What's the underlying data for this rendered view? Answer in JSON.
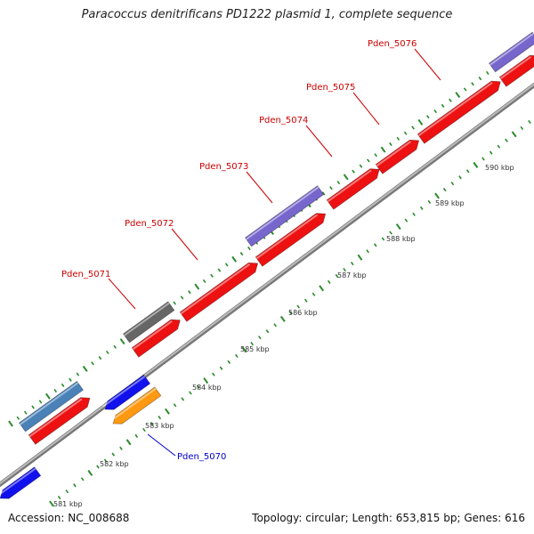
{
  "title": "Paracoccus denitrificans PD1222 plasmid 1, complete sequence",
  "accession": "Accession: NC_008688",
  "summary": "Topology: circular; Length: 653,815 bp; Genes: 616",
  "scale_labels": [
    "581 kbp",
    "582 kbp",
    "583 kbp",
    "584 kbp",
    "585 kbp",
    "586 kbp",
    "587 kbp",
    "588 kbp",
    "589 kbp",
    "590 kbp"
  ],
  "gene_labels": [
    {
      "text": "Pden_5070",
      "color": "#0000cc"
    },
    {
      "text": "Pden_5071",
      "color": "#cc0000"
    },
    {
      "text": "Pden_5072",
      "color": "#cc0000"
    },
    {
      "text": "Pden_5073",
      "color": "#cc0000"
    },
    {
      "text": "Pden_5074",
      "color": "#cc0000"
    },
    {
      "text": "Pden_5075",
      "color": "#cc0000"
    },
    {
      "text": "Pden_5076",
      "color": "#cc0000"
    }
  ],
  "colors": {
    "forward_cds": "#ee1111",
    "reverse_cds": "#1111ee",
    "orange_feature": "#ff9911",
    "steelblue_feature": "#4a82b8",
    "slate_feature": "#7766cc",
    "gray_feature": "#666666",
    "backbone": "#999999",
    "tick": "#2a8a2a"
  }
}
